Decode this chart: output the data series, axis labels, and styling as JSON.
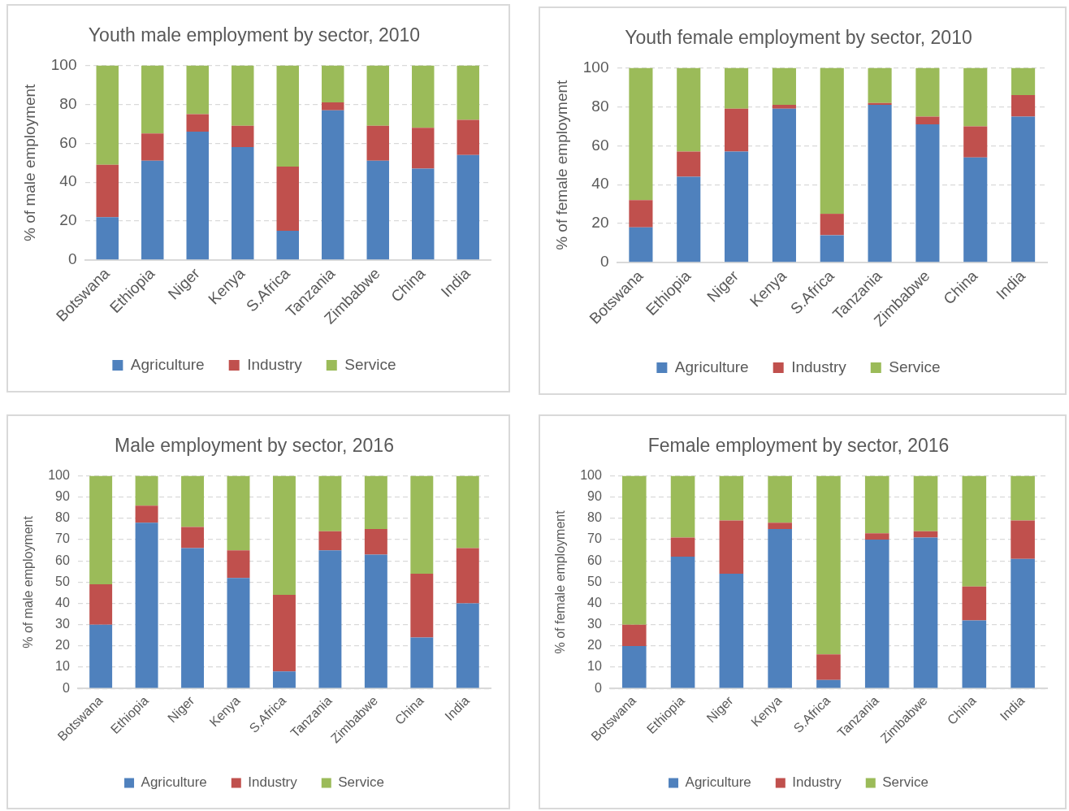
{
  "chart_data": [
    {
      "type": "bar",
      "title": "Youth male employment by sector, 2010",
      "ylabel": "% of male employment",
      "stacked": true,
      "legend": "bottom",
      "grid": "y",
      "categories": [
        "Botswana",
        "Ethiopia",
        "Niger",
        "Kenya",
        "S.Africa",
        "Tanzania",
        "Zimbabwe",
        "China",
        "India"
      ],
      "ylim": [
        0,
        100
      ],
      "yticks": [
        0,
        20,
        40,
        60,
        80,
        100
      ],
      "series": [
        {
          "name": "Agriculture",
          "color": "#4f81bd",
          "values": [
            22,
            51,
            66,
            58,
            15,
            77,
            51,
            47,
            54
          ]
        },
        {
          "name": "Industry",
          "color": "#c0504d",
          "values": [
            27,
            14,
            9,
            11,
            33,
            4,
            18,
            21,
            18
          ]
        },
        {
          "name": "Service",
          "color": "#9bbb59",
          "values": [
            51,
            35,
            25,
            31,
            52,
            19,
            31,
            32,
            28
          ]
        }
      ]
    },
    {
      "type": "bar",
      "title": "Youth female employment by sector, 2010",
      "ylabel": "% of female employment",
      "stacked": true,
      "legend": "bottom",
      "grid": "y",
      "categories": [
        "Botswana",
        "Ethiopia",
        "Niger",
        "Kenya",
        "S.Africa",
        "Tanzania",
        "Zimbabwe",
        "China",
        "India"
      ],
      "ylim": [
        0,
        100
      ],
      "yticks": [
        0,
        20,
        40,
        60,
        80,
        100
      ],
      "series": [
        {
          "name": "Agriculture",
          "color": "#4f81bd",
          "values": [
            18,
            44,
            57,
            79,
            14,
            81,
            71,
            54,
            75
          ]
        },
        {
          "name": "Industry",
          "color": "#c0504d",
          "values": [
            14,
            13,
            22,
            2,
            11,
            1,
            4,
            16,
            11
          ]
        },
        {
          "name": "Service",
          "color": "#9bbb59",
          "values": [
            68,
            43,
            21,
            19,
            75,
            18,
            25,
            30,
            14
          ]
        }
      ]
    },
    {
      "type": "bar",
      "title": "Male employment by sector, 2016",
      "ylabel": "% of male employment",
      "stacked": true,
      "legend": "bottom",
      "grid": "y",
      "categories": [
        "Botswana",
        "Ethiopia",
        "Niger",
        "Kenya",
        "S.Africa",
        "Tanzania",
        "Zimbabwe",
        "China",
        "India"
      ],
      "ylim": [
        0,
        100
      ],
      "yticks": [
        0,
        10,
        20,
        30,
        40,
        50,
        60,
        70,
        80,
        90,
        100
      ],
      "series": [
        {
          "name": "Agriculture",
          "color": "#4f81bd",
          "values": [
            30,
            78,
            66,
            52,
            8,
            65,
            63,
            24,
            40
          ]
        },
        {
          "name": "Industry",
          "color": "#c0504d",
          "values": [
            19,
            8,
            10,
            13,
            36,
            9,
            12,
            30,
            26
          ]
        },
        {
          "name": "Service",
          "color": "#9bbb59",
          "values": [
            51,
            14,
            24,
            35,
            56,
            26,
            25,
            46,
            34
          ]
        }
      ]
    },
    {
      "type": "bar",
      "title": "Female employment by sector, 2016",
      "ylabel": "% of female employment",
      "stacked": true,
      "legend": "bottom",
      "grid": "y",
      "categories": [
        "Botswana",
        "Ethiopia",
        "Niger",
        "Kenya",
        "S.Africa",
        "Tanzania",
        "Zimbabwe",
        "China",
        "India"
      ],
      "ylim": [
        0,
        100
      ],
      "yticks": [
        0,
        10,
        20,
        30,
        40,
        50,
        60,
        70,
        80,
        90,
        100
      ],
      "series": [
        {
          "name": "Agriculture",
          "color": "#4f81bd",
          "values": [
            20,
            62,
            54,
            75,
            4,
            70,
            71,
            32,
            61
          ]
        },
        {
          "name": "Industry",
          "color": "#c0504d",
          "values": [
            10,
            9,
            25,
            3,
            12,
            3,
            3,
            16,
            18
          ]
        },
        {
          "name": "Service",
          "color": "#9bbb59",
          "values": [
            70,
            29,
            21,
            22,
            84,
            27,
            26,
            52,
            21
          ]
        }
      ]
    }
  ]
}
